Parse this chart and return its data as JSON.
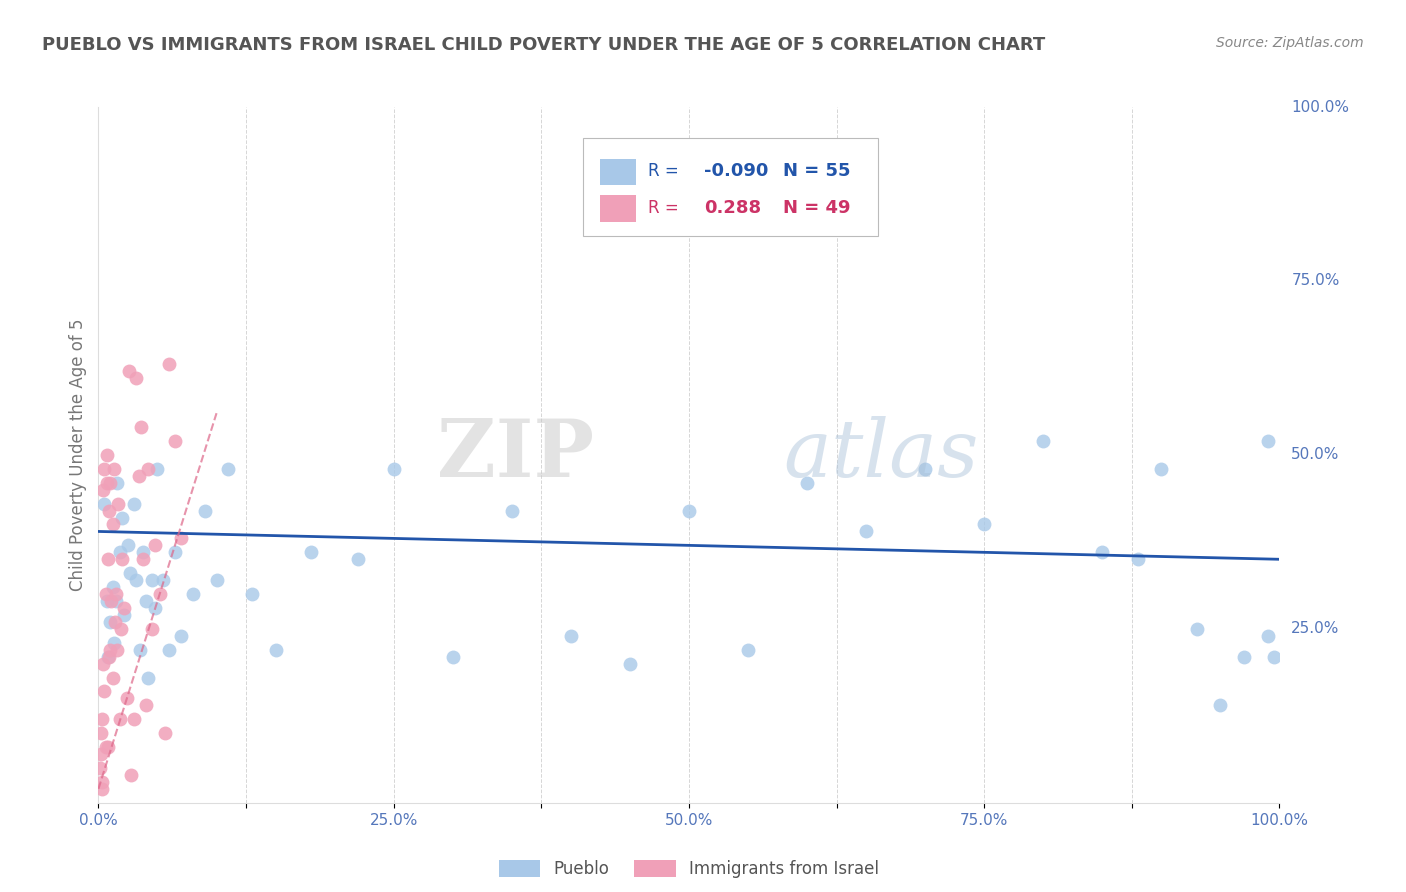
{
  "title": "PUEBLO VS IMMIGRANTS FROM ISRAEL CHILD POVERTY UNDER THE AGE OF 5 CORRELATION CHART",
  "source": "Source: ZipAtlas.com",
  "ylabel": "Child Poverty Under the Age of 5",
  "xlim": [
    0,
    1.0
  ],
  "ylim": [
    0,
    1.0
  ],
  "xtick_labels": [
    "0.0%",
    "",
    "25.0%",
    "",
    "50.0%",
    "",
    "75.0%",
    "",
    "100.0%"
  ],
  "xtick_positions": [
    0,
    0.125,
    0.25,
    0.375,
    0.5,
    0.625,
    0.75,
    0.875,
    1.0
  ],
  "ytick_labels": [
    "100.0%",
    "75.0%",
    "50.0%",
    "25.0%"
  ],
  "ytick_positions": [
    1.0,
    0.75,
    0.5,
    0.25
  ],
  "watermark_zip": "ZIP",
  "watermark_atlas": "atlas",
  "legend_R1": "-0.090",
  "legend_N1": "55",
  "legend_R2": "0.288",
  "legend_N2": "49",
  "pueblo_color": "#a8c8e8",
  "israel_color": "#f0a0b8",
  "pueblo_line_color": "#2255aa",
  "israel_line_color": "#dd6688",
  "background_color": "#ffffff",
  "grid_color": "#cccccc",
  "title_color": "#555555",
  "source_color": "#888888",
  "tick_color": "#5577bb",
  "pueblo_scatter_x": [
    0.005,
    0.007,
    0.008,
    0.01,
    0.012,
    0.013,
    0.015,
    0.016,
    0.018,
    0.02,
    0.022,
    0.025,
    0.027,
    0.03,
    0.032,
    0.035,
    0.038,
    0.04,
    0.042,
    0.045,
    0.048,
    0.05,
    0.055,
    0.06,
    0.065,
    0.07,
    0.08,
    0.09,
    0.1,
    0.11,
    0.13,
    0.15,
    0.18,
    0.22,
    0.25,
    0.3,
    0.35,
    0.4,
    0.45,
    0.5,
    0.55,
    0.6,
    0.65,
    0.7,
    0.75,
    0.8,
    0.85,
    0.88,
    0.9,
    0.93,
    0.95,
    0.97,
    0.99,
    0.99,
    0.995
  ],
  "pueblo_scatter_y": [
    0.43,
    0.29,
    0.21,
    0.26,
    0.31,
    0.23,
    0.29,
    0.46,
    0.36,
    0.41,
    0.27,
    0.37,
    0.33,
    0.43,
    0.32,
    0.22,
    0.36,
    0.29,
    0.18,
    0.32,
    0.28,
    0.48,
    0.32,
    0.22,
    0.36,
    0.24,
    0.3,
    0.42,
    0.32,
    0.48,
    0.3,
    0.22,
    0.36,
    0.35,
    0.48,
    0.21,
    0.42,
    0.24,
    0.2,
    0.42,
    0.22,
    0.46,
    0.39,
    0.48,
    0.4,
    0.52,
    0.36,
    0.35,
    0.48,
    0.25,
    0.14,
    0.21,
    0.24,
    0.52,
    0.21
  ],
  "israel_scatter_x": [
    0.001,
    0.002,
    0.002,
    0.003,
    0.003,
    0.003,
    0.004,
    0.004,
    0.005,
    0.005,
    0.006,
    0.006,
    0.007,
    0.007,
    0.008,
    0.008,
    0.009,
    0.009,
    0.01,
    0.01,
    0.011,
    0.012,
    0.012,
    0.013,
    0.014,
    0.015,
    0.016,
    0.017,
    0.018,
    0.019,
    0.02,
    0.022,
    0.024,
    0.026,
    0.028,
    0.03,
    0.032,
    0.034,
    0.036,
    0.038,
    0.04,
    0.042,
    0.045,
    0.048,
    0.052,
    0.056,
    0.06,
    0.065,
    0.07
  ],
  "israel_scatter_y": [
    0.05,
    0.1,
    0.07,
    0.12,
    0.03,
    0.02,
    0.2,
    0.45,
    0.16,
    0.48,
    0.3,
    0.08,
    0.5,
    0.46,
    0.35,
    0.08,
    0.42,
    0.21,
    0.46,
    0.22,
    0.29,
    0.4,
    0.18,
    0.48,
    0.26,
    0.3,
    0.22,
    0.43,
    0.12,
    0.25,
    0.35,
    0.28,
    0.15,
    0.62,
    0.04,
    0.12,
    0.61,
    0.47,
    0.54,
    0.35,
    0.14,
    0.48,
    0.25,
    0.37,
    0.3,
    0.1,
    0.63,
    0.52,
    0.38
  ],
  "pueblo_line_x": [
    0.0,
    1.0
  ],
  "pueblo_line_y": [
    0.39,
    0.35
  ],
  "israel_line_x": [
    0.0,
    0.1
  ],
  "israel_line_y": [
    0.02,
    0.56
  ]
}
